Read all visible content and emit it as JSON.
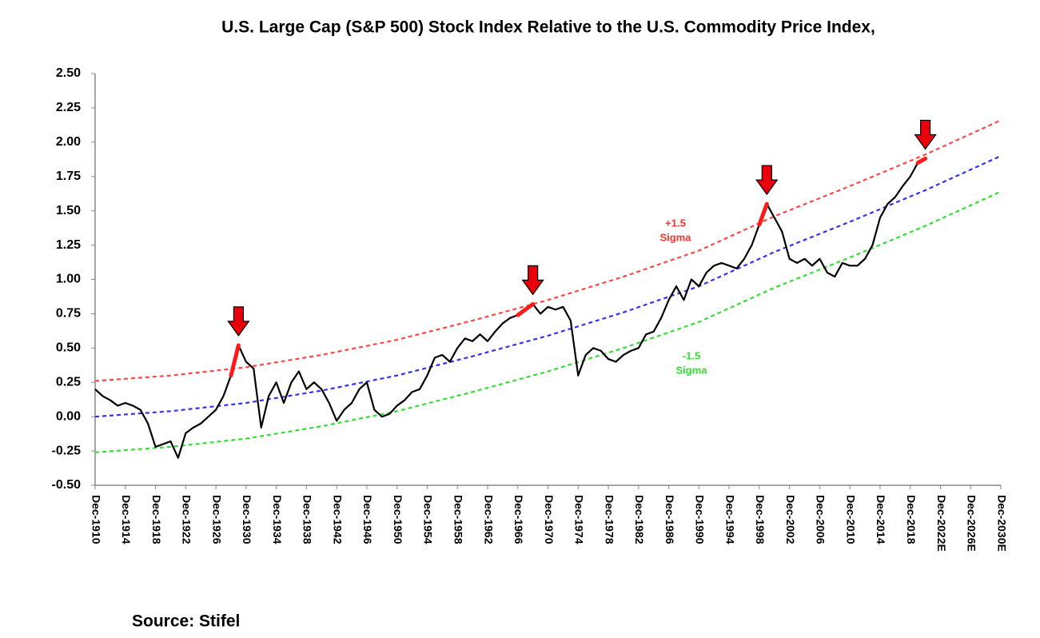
{
  "chart_data": {
    "type": "line",
    "title": "U.S. Large Cap (S&P 500) Stock Index Relative to the U.S. Commodity Price Index,",
    "source": "Source: Stifel",
    "xlim": [
      1910,
      2030
    ],
    "xticks": [
      {
        "value": 1910,
        "label": "Dec-1910"
      },
      {
        "value": 1914,
        "label": "Dec-1914"
      },
      {
        "value": 1918,
        "label": "Dec-1918"
      },
      {
        "value": 1922,
        "label": "Dec-1922"
      },
      {
        "value": 1926,
        "label": "Dec-1926"
      },
      {
        "value": 1930,
        "label": "Dec-1930"
      },
      {
        "value": 1934,
        "label": "Dec-1934"
      },
      {
        "value": 1938,
        "label": "Dec-1938"
      },
      {
        "value": 1942,
        "label": "Dec-1942"
      },
      {
        "value": 1946,
        "label": "Dec-1946"
      },
      {
        "value": 1950,
        "label": "Dec-1950"
      },
      {
        "value": 1954,
        "label": "Dec-1954"
      },
      {
        "value": 1958,
        "label": "Dec-1958"
      },
      {
        "value": 1962,
        "label": "Dec-1962"
      },
      {
        "value": 1966,
        "label": "Dec-1966"
      },
      {
        "value": 1970,
        "label": "Dec-1970"
      },
      {
        "value": 1974,
        "label": "Dec-1974"
      },
      {
        "value": 1978,
        "label": "Dec-1978"
      },
      {
        "value": 1982,
        "label": "Dec-1982"
      },
      {
        "value": 1986,
        "label": "Dec-1986"
      },
      {
        "value": 1990,
        "label": "Dec-1990"
      },
      {
        "value": 1994,
        "label": "Dec-1994"
      },
      {
        "value": 1998,
        "label": "Dec-1998"
      },
      {
        "value": 2002,
        "label": "Dec-2002"
      },
      {
        "value": 2006,
        "label": "Dec-2006"
      },
      {
        "value": 2010,
        "label": "Dec-2010"
      },
      {
        "value": 2014,
        "label": "Dec-2014"
      },
      {
        "value": 2018,
        "label": "Dec-2018"
      },
      {
        "value": 2022,
        "label": "Dec-2022E"
      },
      {
        "value": 2026,
        "label": "Dec-2026E"
      },
      {
        "value": 2030,
        "label": "Dec-2030E"
      }
    ],
    "ylim": [
      -0.5,
      2.5
    ],
    "yticks": [
      {
        "value": 2.5,
        "label": "2.50"
      },
      {
        "value": 2.25,
        "label": "2.25"
      },
      {
        "value": 2,
        "label": "2.00"
      },
      {
        "value": 1.75,
        "label": "1.75"
      },
      {
        "value": 1.5,
        "label": "1.50"
      },
      {
        "value": 1.25,
        "label": "1.25"
      },
      {
        "value": 1,
        "label": "1.00"
      },
      {
        "value": 0.75,
        "label": "0.75"
      },
      {
        "value": 0.5,
        "label": "0.50"
      },
      {
        "value": 0.25,
        "label": "0.25"
      },
      {
        "value": 0,
        "label": "0.00"
      },
      {
        "value": -0.25,
        "label": "-0.25"
      },
      {
        "value": -0.5,
        "label": "-0.50"
      }
    ],
    "series": [
      {
        "color": "#000000",
        "x": [
          1910,
          1911,
          1912,
          1913,
          1914,
          1915,
          1916,
          1917,
          1918,
          1919,
          1920,
          1921,
          1922,
          1923,
          1924,
          1925,
          1926,
          1927,
          1928,
          1929,
          1930,
          1931,
          1932,
          1933,
          1934,
          1935,
          1936,
          1937,
          1938,
          1939,
          1940,
          1941,
          1942,
          1943,
          1944,
          1945,
          1946,
          1947,
          1948,
          1949,
          1950,
          1951,
          1952,
          1953,
          1954,
          1955,
          1956,
          1957,
          1958,
          1959,
          1960,
          1961,
          1962,
          1963,
          1964,
          1965,
          1966,
          1967,
          1968,
          1969,
          1970,
          1971,
          1972,
          1973,
          1974,
          1975,
          1976,
          1977,
          1978,
          1979,
          1980,
          1981,
          1982,
          1983,
          1984,
          1985,
          1986,
          1987,
          1988,
          1989,
          1990,
          1991,
          1992,
          1993,
          1994,
          1995,
          1996,
          1997,
          1998,
          1999,
          2000,
          2001,
          2002,
          2003,
          2004,
          2005,
          2006,
          2007,
          2008,
          2009,
          2010,
          2011,
          2012,
          2013,
          2014,
          2015,
          2016,
          2017,
          2018,
          2019,
          2020
        ],
        "values": [
          0.2,
          0.15,
          0.12,
          0.08,
          0.1,
          0.08,
          0.05,
          -0.05,
          -0.22,
          -0.2,
          -0.18,
          -0.3,
          -0.12,
          -0.08,
          -0.05,
          0.0,
          0.05,
          0.15,
          0.3,
          0.52,
          0.4,
          0.35,
          -0.08,
          0.15,
          0.25,
          0.1,
          0.25,
          0.33,
          0.2,
          0.25,
          0.2,
          0.1,
          -0.03,
          0.05,
          0.1,
          0.2,
          0.25,
          0.05,
          0.0,
          0.02,
          0.08,
          0.12,
          0.18,
          0.2,
          0.3,
          0.43,
          0.45,
          0.4,
          0.5,
          0.57,
          0.55,
          0.6,
          0.55,
          0.62,
          0.68,
          0.72,
          0.74,
          0.78,
          0.82,
          0.75,
          0.8,
          0.78,
          0.8,
          0.7,
          0.3,
          0.45,
          0.5,
          0.48,
          0.42,
          0.4,
          0.45,
          0.48,
          0.5,
          0.6,
          0.62,
          0.72,
          0.85,
          0.95,
          0.85,
          1.0,
          0.95,
          1.05,
          1.1,
          1.12,
          1.1,
          1.08,
          1.15,
          1.25,
          1.4,
          1.55,
          1.45,
          1.35,
          1.15,
          1.12,
          1.15,
          1.1,
          1.15,
          1.05,
          1.02,
          1.12,
          1.1,
          1.1,
          1.15,
          1.25,
          1.45,
          1.55,
          1.6,
          1.68,
          1.75,
          1.85,
          1.88
        ]
      },
      {
        "color": "#ff4545",
        "dashed": true,
        "x": [
          1910,
          1920,
          1930,
          1940,
          1950,
          1960,
          1970,
          1980,
          1990,
          2000,
          2010,
          2020,
          2030
        ],
        "values": [
          0.26,
          0.3,
          0.36,
          0.45,
          0.56,
          0.7,
          0.85,
          1.02,
          1.21,
          1.46,
          1.68,
          1.91,
          2.16
        ]
      },
      {
        "color": "#3333ee",
        "dashed": true,
        "x": [
          1910,
          1920,
          1930,
          1940,
          1950,
          1960,
          1970,
          1980,
          1990,
          2000,
          2010,
          2020,
          2030
        ],
        "values": [
          0.0,
          0.04,
          0.1,
          0.19,
          0.3,
          0.44,
          0.59,
          0.76,
          0.95,
          1.2,
          1.42,
          1.65,
          1.9
        ]
      },
      {
        "color": "#33dd33",
        "dashed": true,
        "x": [
          1910,
          1920,
          1930,
          1940,
          1950,
          1960,
          1970,
          1980,
          1990,
          2000,
          2010,
          2020,
          2030
        ],
        "values": [
          -0.26,
          -0.22,
          -0.16,
          -0.07,
          0.04,
          0.18,
          0.33,
          0.5,
          0.69,
          0.94,
          1.16,
          1.39,
          1.64
        ]
      }
    ],
    "highlight_color": "#ff1a1a",
    "highlight_ranges": [
      [
        1928,
        1929
      ],
      [
        1966,
        1968
      ],
      [
        1998,
        1999
      ],
      [
        2019,
        2020
      ]
    ],
    "annotations": [
      {
        "lines": [
          "+1.5",
          "Sigma"
        ],
        "color": "#ff3030"
      },
      {
        "lines": [
          "-1.5",
          "Sigma"
        ],
        "color": "#33dd33"
      }
    ]
  }
}
